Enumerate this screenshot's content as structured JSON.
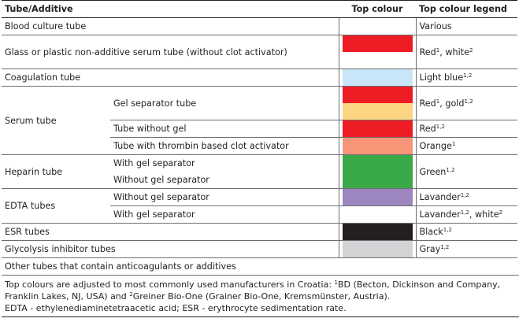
{
  "headers": {
    "tube_additive": "Tube/Additive",
    "top_colour": "Top colour",
    "top_colour_legend": "Top colour legend"
  },
  "rows": {
    "blood_culture": {
      "label": "Blood culture tube",
      "legend": "Various"
    },
    "glass_plastic": {
      "label": "Glass or plastic non-additive serum tube (without clot activator)",
      "legend_a": "Red",
      "sup_a": "1",
      "legend_sep": ", white",
      "sup_b": "2",
      "colors": [
        "#ee1c25",
        "#ffffff"
      ]
    },
    "coagulation": {
      "label": "Coagulation tube",
      "legend": "Light blue",
      "sup": "1,2",
      "color": "#c8e6f7"
    },
    "serum": {
      "label": "Serum tube",
      "gel_separator": {
        "label": "Gel separator tube",
        "legend_a": "Red",
        "sup_a": "1",
        "legend_sep": ", gold",
        "sup_b": "1,2",
        "colors": [
          "#ee1c25",
          "#fcd683"
        ]
      },
      "without_gel": {
        "label": "Tube without gel",
        "legend": "Red",
        "sup": "1,2",
        "color": "#ee1c25"
      },
      "thrombin": {
        "label": "Tube with thrombin based clot activator",
        "legend": "Orange",
        "sup": "1",
        "color": "#f79679"
      }
    },
    "heparin": {
      "label": "Heparin tube",
      "with_gel": "With gel separator",
      "without_gel": "Without gel separator",
      "legend": "Green",
      "sup": "1,2",
      "color": "#3aaa48"
    },
    "edta": {
      "label": "EDTA tubes",
      "without_gel": {
        "label": "Without gel separator",
        "legend": "Lavander",
        "sup": "1,2",
        "color": "#9e86c0"
      },
      "with_gel": {
        "label": "With gel separator",
        "legend_a": "Lavander",
        "sup_a": "1,2",
        "legend_sep": ", white",
        "sup_b": "2",
        "color": "#ffffff"
      }
    },
    "esr": {
      "label": "ESR tubes",
      "legend": "Black",
      "sup": "1,2",
      "color": "#231f20"
    },
    "glycolysis": {
      "label": "Glycolysis inhibitor tubes",
      "legend": "Gray",
      "sup": "1,2",
      "color": "#d1d3d4"
    },
    "other": {
      "label": "Other tubes that contain anticoagulants or additives"
    }
  },
  "notes": {
    "line1_a": "Top colours are adjusted to most commonly used manufacturers in Croatia: ",
    "sup1": "1",
    "line1_b": "BD (Becton, Dickinson and Company,",
    "line2_a": "Franklin Lakes, NJ, USA) and ",
    "sup2": "2",
    "line2_b": "Greiner Bio-One (Grainer Bio-One, Kremsmünster, Austria).",
    "line3": "EDTA - ethylenediaminetetraacetic acid; ESR - erythrocyte sedimentation rate."
  }
}
